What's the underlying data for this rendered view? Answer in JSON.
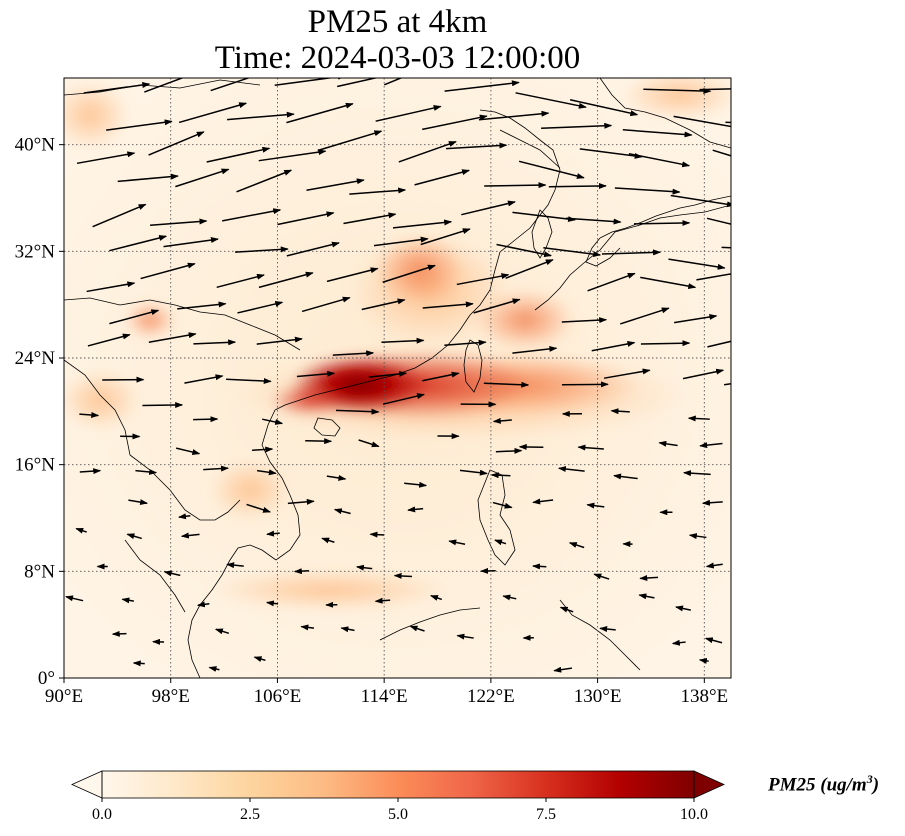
{
  "title_line1": "PM25 at 4km",
  "title_line2": "Time: 2024-03-03 12:00:00",
  "map": {
    "lon_range": [
      90,
      140
    ],
    "lat_range": [
      0,
      45
    ],
    "x_ticks": [
      {
        "lon": 90,
        "label": "90°E"
      },
      {
        "lon": 98,
        "label": "98°E"
      },
      {
        "lon": 106,
        "label": "106°E"
      },
      {
        "lon": 114,
        "label": "114°E"
      },
      {
        "lon": 122,
        "label": "122°E"
      },
      {
        "lon": 130,
        "label": "130°E"
      },
      {
        "lon": 138,
        "label": "138°E"
      }
    ],
    "y_ticks": [
      {
        "lat": 0,
        "label": "0°"
      },
      {
        "lat": 8,
        "label": "8°N"
      },
      {
        "lat": 16,
        "label": "16°N"
      },
      {
        "lat": 24,
        "label": "24°N"
      },
      {
        "lat": 32,
        "label": "32°N"
      },
      {
        "lat": 40,
        "label": "40°N"
      }
    ],
    "gridlines": true,
    "wind_vectors": true,
    "coastlines": true
  },
  "colorbar": {
    "label_main": "PM25 (ug/m",
    "label_sup": "3",
    "label_close": ")",
    "ticks": [
      "0.0",
      "2.5",
      "5.0",
      "7.5",
      "10.0"
    ],
    "tick_values": [
      0,
      2.5,
      5,
      7.5,
      10
    ],
    "range": [
      0,
      10
    ],
    "extend": "both",
    "colormap": "OrRd",
    "colors": [
      "#fff7ec",
      "#fee8c8",
      "#fdd49e",
      "#fdbb84",
      "#fc8d59",
      "#ef6548",
      "#d7301f",
      "#b30000",
      "#7f0000"
    ]
  }
}
